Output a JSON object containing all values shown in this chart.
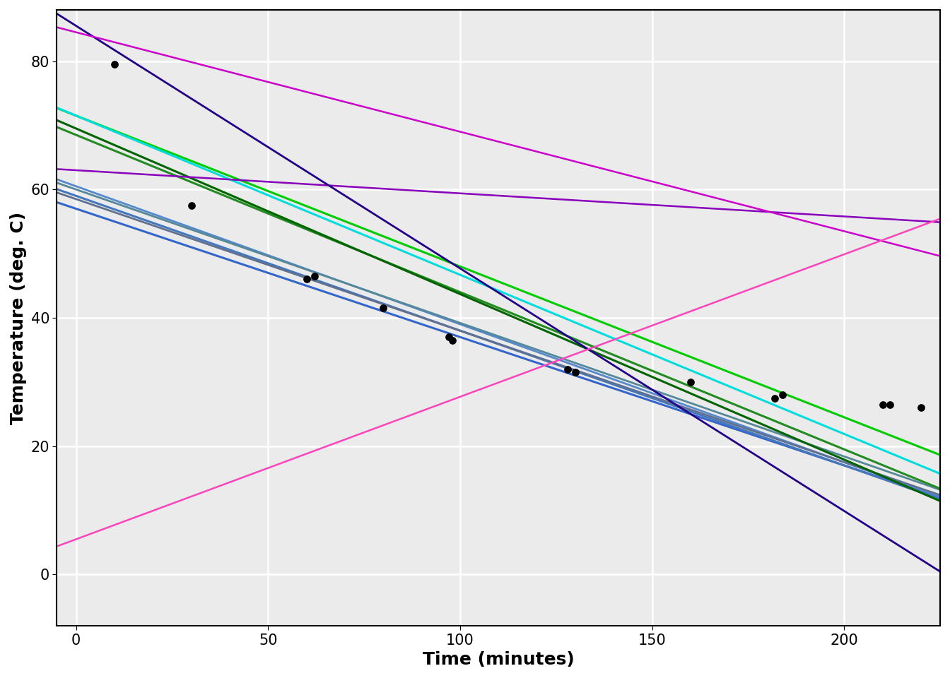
{
  "xlabel": "Time (minutes)",
  "ylabel": "Temperature (deg. C)",
  "xlim": [
    -5,
    225
  ],
  "ylim": [
    -8,
    88
  ],
  "xticks": [
    0,
    50,
    100,
    150,
    200
  ],
  "yticks": [
    0,
    20,
    40,
    60,
    80
  ],
  "scatter_points": [
    [
      10,
      79.5
    ],
    [
      30,
      57.5
    ],
    [
      60,
      46.0
    ],
    [
      62,
      46.5
    ],
    [
      80,
      41.5
    ],
    [
      97,
      37.0
    ],
    [
      98,
      36.5
    ],
    [
      128,
      32.0
    ],
    [
      130,
      31.5
    ],
    [
      160,
      30.0
    ],
    [
      182,
      27.5
    ],
    [
      184,
      28.0
    ],
    [
      210,
      26.5
    ],
    [
      212,
      26.5
    ],
    [
      220,
      26.0
    ]
  ],
  "lines": [
    {
      "slope": -0.2,
      "intercept": 57.0,
      "color": "#3366CC",
      "lw": 2.2
    },
    {
      "slope": -0.21,
      "intercept": 59.0,
      "color": "#4477BB",
      "lw": 2.2
    },
    {
      "slope": -0.215,
      "intercept": 60.5,
      "color": "#5588CC",
      "lw": 2.0
    },
    {
      "slope": -0.205,
      "intercept": 58.5,
      "color": "#607090",
      "lw": 2.0
    },
    {
      "slope": -0.208,
      "intercept": 60.0,
      "color": "#558899",
      "lw": 2.0
    },
    {
      "slope": -0.245,
      "intercept": 68.5,
      "color": "#228B22",
      "lw": 2.2
    },
    {
      "slope": -0.258,
      "intercept": 69.5,
      "color": "#006400",
      "lw": 2.2
    },
    {
      "slope": -0.235,
      "intercept": 71.5,
      "color": "#00CC00",
      "lw": 2.2
    },
    {
      "slope": -0.248,
      "intercept": 71.5,
      "color": "#00DDDD",
      "lw": 2.2
    },
    {
      "slope": -0.036,
      "intercept": 63.0,
      "color": "#8800BB",
      "lw": 1.8
    },
    {
      "slope": -0.378,
      "intercept": 85.5,
      "color": "#220088",
      "lw": 2.0
    },
    {
      "slope": -0.155,
      "intercept": 84.5,
      "color": "#CC00CC",
      "lw": 1.8
    },
    {
      "slope": 0.222,
      "intercept": 5.5,
      "color": "#FF44BB",
      "lw": 1.8
    }
  ],
  "background_color": "#EBEBEB",
  "grid_color": "white",
  "label_fontsize": 18,
  "tick_fontsize": 15
}
